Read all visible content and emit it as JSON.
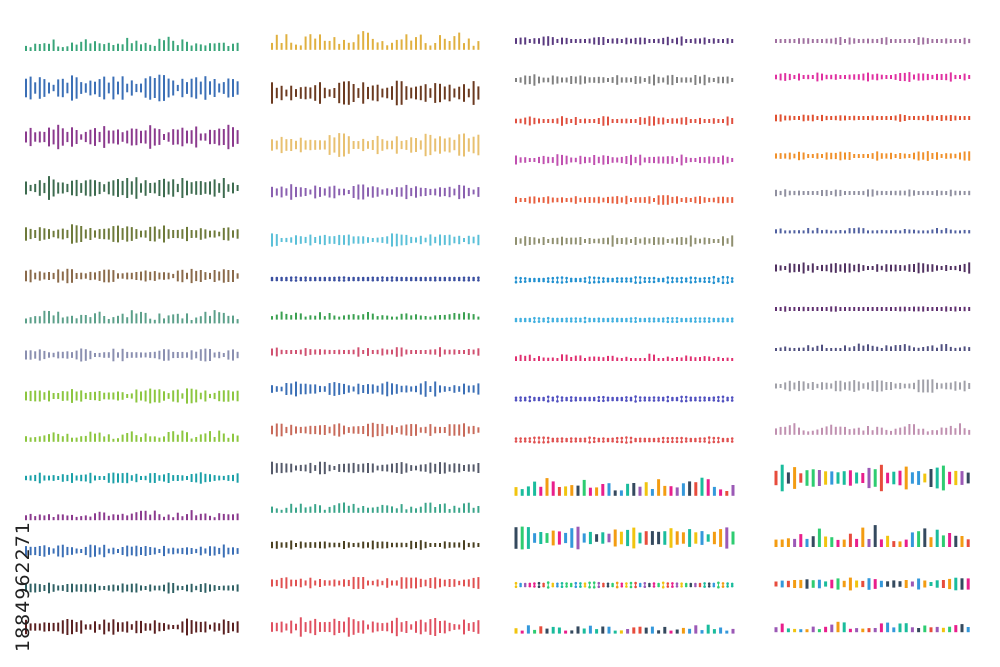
{
  "watermark": {
    "id": "1884962271"
  }
}
